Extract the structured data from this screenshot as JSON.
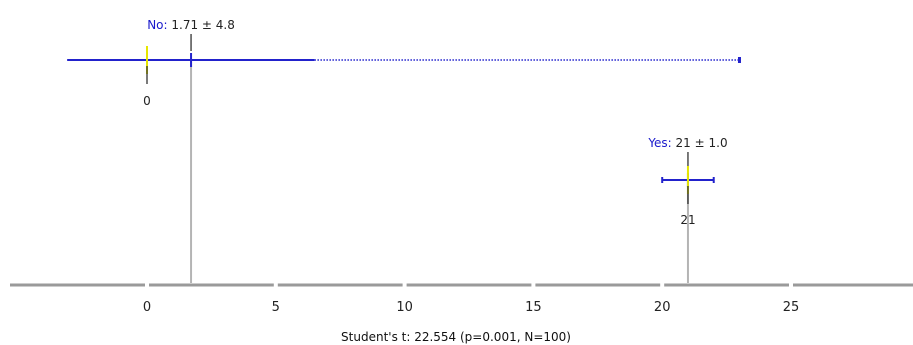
{
  "chart_data": {
    "type": "box",
    "xlim": [
      -5.5,
      29.5
    ],
    "ticks": [
      0,
      5,
      10,
      15,
      20,
      25
    ],
    "tick_labels": [
      "0",
      "5",
      "10",
      "15",
      "20",
      "25"
    ],
    "series": [
      {
        "name": "No",
        "name_text": "No:",
        "stat_text": "1.71 ± 4.8",
        "mean": 1.71,
        "median": 0,
        "median_text": "0",
        "whisker_low": -3.1,
        "whisker_high": 6.5,
        "max": 23
      },
      {
        "name": "Yes",
        "name_text": "Yes:",
        "stat_text": "21 ± 1.0",
        "mean": 21,
        "median": 21,
        "median_text": "21",
        "whisker_low": 20,
        "whisker_high": 22,
        "max": null
      }
    ],
    "footer": "Student's t: 22.554 (p=0.001, N=100)"
  },
  "colors": {
    "series_line": "#2222cc",
    "label_name": "#1a1acc",
    "median_mark": "#e6e600",
    "axis": "#9a9a9a",
    "drop_line": "#b4b4b4"
  }
}
